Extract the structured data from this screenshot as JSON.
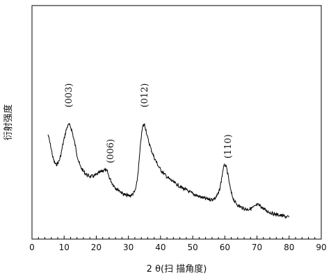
{
  "chart_data": {
    "type": "line",
    "title": "",
    "xlabel": "2 θ(扫 描角度)",
    "ylabel": "衍射强度",
    "xlim": [
      0,
      90
    ],
    "ylim": [
      0,
      100
    ],
    "x_ticks": [
      "0",
      "10",
      "20",
      "30",
      "40",
      "50",
      "60",
      "70",
      "80",
      "90"
    ],
    "y_ticks_shown": false,
    "grid": false,
    "legend": "none",
    "line_color": "#000000",
    "series": [
      {
        "x": [
          5,
          5.5,
          6,
          6.5,
          7,
          7.5,
          8,
          8.5,
          9,
          9.5,
          10,
          10.5,
          11,
          11.5,
          12,
          12.5,
          13,
          13.5,
          14,
          14.5,
          15,
          16,
          17,
          18,
          19,
          20,
          21,
          22,
          22.5,
          23,
          23.5,
          24,
          25,
          26,
          27,
          28,
          29,
          30,
          31,
          32,
          32.5,
          33,
          33.5,
          34,
          34.5,
          35,
          35.5,
          36,
          37,
          38,
          39,
          40,
          42,
          44,
          46,
          48,
          50,
          52,
          54,
          56,
          57,
          58,
          58.5,
          59,
          59.5,
          60,
          60.5,
          61,
          61.5,
          62,
          63,
          64,
          65,
          66,
          67,
          68,
          69,
          70,
          70.5,
          71,
          71.5,
          72,
          73,
          74,
          75,
          76,
          77,
          78,
          79,
          80
        ],
        "y": [
          48.6,
          44.7,
          40.7,
          35.9,
          33.1,
          31.9,
          32.7,
          34.3,
          37.5,
          42.2,
          46.2,
          50.2,
          53,
          54.2,
          53,
          50.2,
          46.2,
          42.2,
          37.5,
          33.9,
          31.1,
          28.3,
          26.3,
          25.5,
          25.5,
          26.3,
          27.5,
          28.7,
          29.1,
          28.7,
          27.9,
          25.1,
          21.5,
          19.1,
          17.9,
          16.3,
          15.1,
          14.7,
          15.1,
          17.1,
          20.3,
          27.5,
          37.5,
          47.8,
          53.4,
          54.2,
          51,
          46.6,
          40.7,
          35.9,
          32.3,
          29.1,
          25.1,
          22.3,
          19.9,
          17.9,
          15.9,
          14.3,
          13.1,
          12.7,
          13.5,
          15.9,
          19.1,
          24.3,
          29.9,
          31.9,
          30.3,
          25.9,
          20.7,
          16.3,
          11.6,
          9.6,
          8.4,
          7.6,
          7.2,
          7.6,
          8.4,
          9.6,
          9.6,
          9.2,
          8.4,
          7.6,
          6.4,
          5.6,
          4.8,
          4.4,
          4,
          3.6,
          3.2,
          2.8
        ]
      }
    ],
    "annotations": [
      {
        "text": "(003)",
        "x": 11.5
      },
      {
        "text": "(006)",
        "x": 24.5
      },
      {
        "text": "(012)",
        "x": 35
      },
      {
        "text": "(110)",
        "x": 61
      }
    ]
  }
}
